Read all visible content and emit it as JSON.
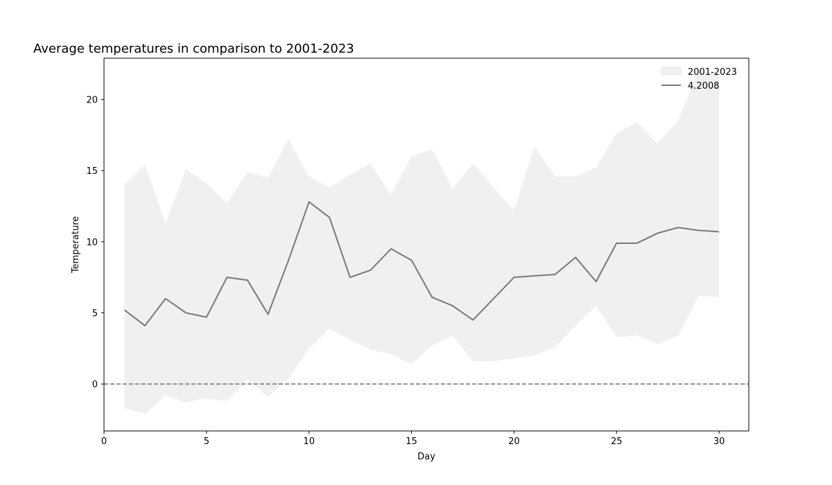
{
  "chart_data": {
    "type": "line",
    "title": "Average temperatures in comparison to 2001-2023",
    "xlabel": "Day",
    "ylabel": "Temperature",
    "xlim": [
      0,
      31.45
    ],
    "ylim": [
      -3.3,
      22.9
    ],
    "xticks": [
      0,
      5,
      10,
      15,
      20,
      25,
      30
    ],
    "yticks": [
      0,
      5,
      10,
      15,
      20
    ],
    "grid": false,
    "legend_position": "top-right",
    "x": [
      1,
      2,
      3,
      4,
      5,
      6,
      7,
      8,
      9,
      10,
      11,
      12,
      13,
      14,
      15,
      16,
      17,
      18,
      19,
      20,
      21,
      22,
      23,
      24,
      25,
      26,
      27,
      28,
      29,
      30
    ],
    "band": {
      "name": "2001-2023",
      "color": "#f0f0f0",
      "upper": [
        14.0,
        15.4,
        11.3,
        15.1,
        14.1,
        12.7,
        14.9,
        14.5,
        17.2,
        14.6,
        13.8,
        14.7,
        15.5,
        13.3,
        16.0,
        16.5,
        13.7,
        15.5,
        13.8,
        12.2,
        16.7,
        14.6,
        14.6,
        15.2,
        17.6,
        18.4,
        16.9,
        18.5,
        22.0,
        21.8
      ],
      "lower": [
        -1.7,
        -2.1,
        -0.8,
        -1.3,
        -1.0,
        -1.2,
        0.3,
        -0.9,
        0.4,
        2.5,
        3.9,
        3.1,
        2.4,
        2.1,
        1.4,
        2.7,
        3.4,
        1.6,
        1.6,
        1.8,
        2.0,
        2.6,
        4.1,
        5.5,
        3.3,
        3.4,
        2.8,
        3.4,
        6.2,
        6.1
      ]
    },
    "series": [
      {
        "name": "4.2008",
        "color": "#777777",
        "values": [
          5.2,
          4.1,
          6.0,
          5.0,
          4.7,
          7.5,
          7.3,
          4.9,
          8.7,
          12.8,
          11.7,
          7.5,
          8.0,
          9.5,
          8.7,
          6.1,
          5.5,
          4.5,
          6.0,
          7.5,
          7.6,
          7.7,
          8.9,
          7.2,
          9.9,
          9.9,
          10.6,
          11.0,
          10.8,
          10.7
        ]
      }
    ],
    "reference_line": {
      "y": 0,
      "style": "dashed",
      "color": "#808080"
    }
  }
}
